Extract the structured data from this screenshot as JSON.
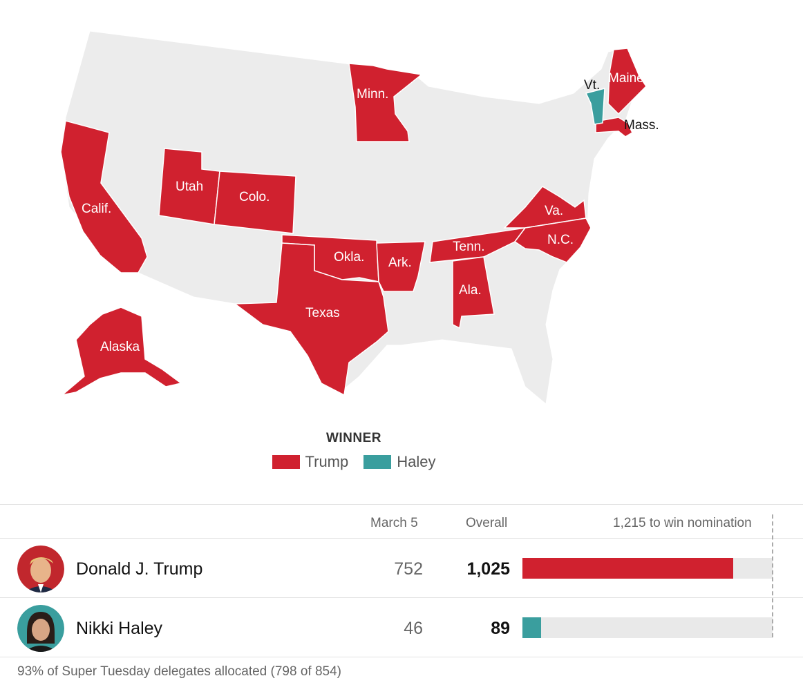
{
  "map": {
    "state_labels": {
      "minn": "Minn.",
      "maine": "Maine",
      "vt": "Vt.",
      "mass": "Mass.",
      "calif": "Calif.",
      "utah": "Utah",
      "colo": "Colo.",
      "va": "Va.",
      "nc": "N.C.",
      "tenn": "Tenn.",
      "okla": "Okla.",
      "ark": "Ark.",
      "ala": "Ala.",
      "texas": "Texas",
      "alaska": "Alaska"
    },
    "colors": {
      "trump": "#d0212f",
      "haley": "#3a9e9e",
      "no_contest": "#ececec",
      "border": "#ffffff"
    }
  },
  "legend": {
    "title": "WINNER",
    "items": [
      {
        "label": "Trump",
        "color": "#d0212f"
      },
      {
        "label": "Haley",
        "color": "#3a9e9e"
      }
    ]
  },
  "table": {
    "headers": {
      "march": "March 5",
      "overall": "Overall",
      "to_win": "1,215 to win nomination"
    },
    "win_threshold": 1215,
    "candidates": [
      {
        "name": "Donald J. Trump",
        "march": "752",
        "overall": "1,025",
        "overall_value": 1025,
        "color": "#d0212f",
        "avatar": "trump-avatar"
      },
      {
        "name": "Nikki Haley",
        "march": "46",
        "overall": "89",
        "overall_value": 89,
        "color": "#3a9e9e",
        "avatar": "haley-avatar"
      }
    ]
  },
  "footnote": "93% of Super Tuesday delegates allocated (798 of 854)"
}
